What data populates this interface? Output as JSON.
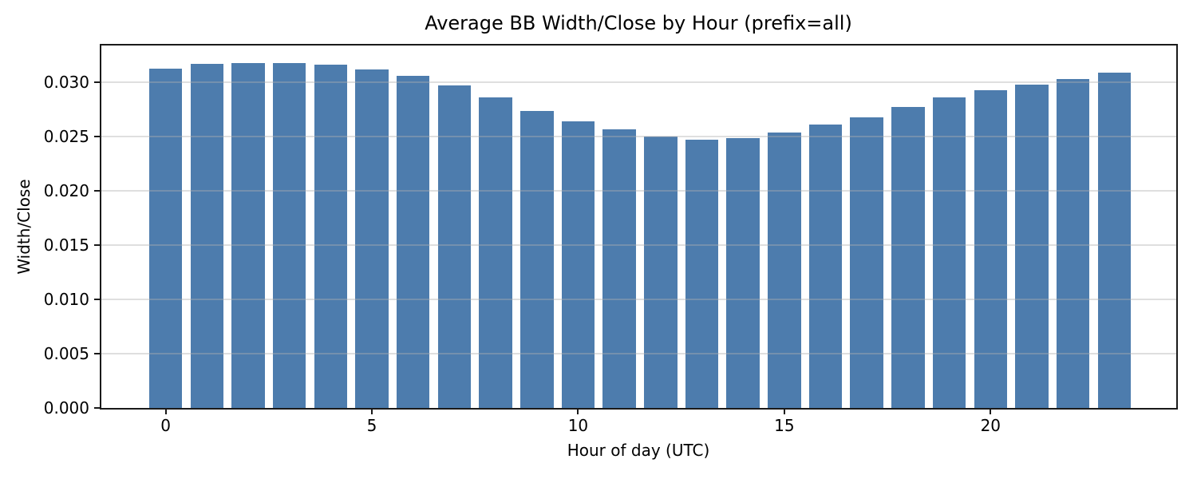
{
  "chart_data": {
    "type": "bar",
    "title": "Average BB Width/Close by Hour (prefix=all)",
    "xlabel": "Hour of day (UTC)",
    "ylabel": "Width/Close",
    "categories": [
      0,
      1,
      2,
      3,
      4,
      5,
      6,
      7,
      8,
      9,
      10,
      11,
      12,
      13,
      14,
      15,
      16,
      17,
      18,
      19,
      20,
      21,
      22,
      23
    ],
    "values": [
      0.0313,
      0.0317,
      0.0318,
      0.0318,
      0.0316,
      0.0312,
      0.0306,
      0.0297,
      0.0286,
      0.0274,
      0.0264,
      0.0257,
      0.025,
      0.0247,
      0.0249,
      0.0254,
      0.0261,
      0.0268,
      0.0277,
      0.0286,
      0.0293,
      0.0298,
      0.0303,
      0.0309
    ],
    "ylim": [
      0,
      0.0334
    ],
    "x_tick_values": [
      0,
      5,
      10,
      15,
      20
    ],
    "x_tick_labels": [
      "0",
      "5",
      "10",
      "15",
      "20"
    ],
    "y_tick_values": [
      0.0,
      0.005,
      0.01,
      0.015,
      0.02,
      0.025,
      0.03
    ],
    "y_tick_labels": [
      "0.000",
      "0.005",
      "0.010",
      "0.015",
      "0.020",
      "0.025",
      "0.030"
    ],
    "grid": "horizontal, drawn over bars",
    "legend": "none",
    "colors": {
      "bar": "#4d7cad",
      "grid": "#b0b0b0",
      "spine": "#1a1a1a",
      "text": "#000000",
      "background": "#ffffff"
    }
  }
}
